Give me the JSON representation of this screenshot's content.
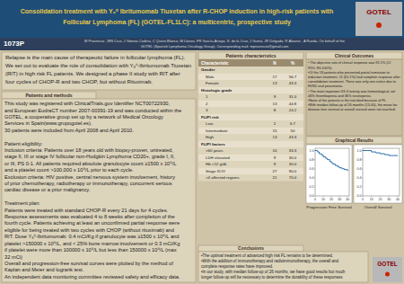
{
  "chart_data": [
    {
      "type": "step",
      "title": "Progression Free Survival",
      "x": [
        0,
        3,
        5,
        8,
        10,
        13,
        15,
        18,
        20,
        22,
        25,
        28,
        30,
        33,
        36,
        40
      ],
      "values": [
        1.0,
        0.97,
        0.93,
        0.9,
        0.86,
        0.83,
        0.8,
        0.76,
        0.73,
        0.7,
        0.67,
        0.64,
        0.62,
        0.6,
        0.58,
        0.55
      ],
      "color": "#2c6fad",
      "xlim": [
        0,
        42
      ],
      "ylim": [
        0,
        1.05
      ],
      "xticks": [
        0,
        10,
        20,
        30,
        40
      ],
      "yticks": [
        {
          "value": 0,
          "label": "0.0"
        },
        0.2,
        0.4,
        0.6,
        0.8,
        {
          "value": 1,
          "label": "1.0"
        }
      ],
      "grid": false
    },
    {
      "type": "step",
      "title": "Overall Survival",
      "x": [
        0,
        5,
        10,
        15,
        20,
        25,
        30,
        35,
        40
      ],
      "values": [
        1.0,
        1.0,
        0.97,
        0.95,
        0.93,
        0.91,
        0.89,
        0.89,
        0.89
      ],
      "color": "#2c6fad",
      "xlim": [
        0,
        42
      ],
      "ylim": [
        0,
        1.05
      ],
      "xticks": [
        0,
        10,
        20,
        30,
        40
      ],
      "yticks": [
        {
          "value": 0,
          "label": "0.0"
        },
        0.2,
        0.4,
        0.6,
        0.8,
        {
          "value": 1,
          "label": "1.0"
        }
      ],
      "grid": false
    }
  ],
  "page": {
    "title_line1": "Consolidation treatment with Y₉⁰ Ibritumomab Tiuxetan after R-CHOP induction in high-risk patients with",
    "title_line2": "Follicular Lymphoma (FL) (GOTEL-FL1LC): a multicentric, prospective study",
    "logo_text": "GOTEL",
    "poster_id": "1073P",
    "authors_line1": "M Provencio , MN Cruz, J Gómez-Codina, C Quero Blanco, M Llanos, FR García-Arroyo, S. de la Cruz, J Gumá, JR Delgado, R Álvarez , A Rueda. On behalf of the",
    "authors_line2": "GOTEL (Spanish Lymphoma Oncology Group). Corresponding mail: mprovencio@gmail.com",
    "intro_text": "Relapse is the main cause of therapeutic failure in follicular lymphoma (FL).\nWe set out to evaluate the role of consolidation with Y₉⁰-Ibritumomab Tiuxetan\n(RIT) in high risk FL patients. We designed a phase II study with RIT after\nfour cycles of CHOP-R and two CHOP, but without Rituximab.",
    "patients_methods_header": "Patients and methods",
    "patients_methods_text": "This study was registered with ClinicalTrials.gov Identifier NCT00722930,\nand European EudraCT number 2007-00391-19 and was conducted within the\nGOTEL, a cooperative group set up by a network of Medical Oncology\nServices in Spain(www.grupogotel.es).\n30 patients were included from April 2008 and April 2010.\n\nPatient eligibility:\nInclusion criteria: Patients over 18 years old with biopsy-proven, untreated,\nstage II, III or stage IV follicular non-Hodgkin Lymphoma CD20+, grade I, II,\nor III, PS 0-1. All patients required absolute granulocyte count ≥1500 x 10⁹/L\nand a platelet count >100,000 x 10⁹/L prior to each cycle.\nExclusion criteria: HIV positive, central nervous system involvement, history\nof prior chemotherapy, radiotherapy or immunotherapy, concurrent serious\ncardiac disease or a prior malignancy.\n\nTreatment plan:\nPatients were treated with standard CHOP-R every 21 days for 4 cycles.\nResponse assessments was evaluated 4 to 8 weeks after completion of the\nfourth cycle. Patients achieving at least an unconfirmed partial response were\neligible for being treated with two cycles with CHOP (without rituximab) and\nRIT. Dose Y₉⁰-Ibritumomab: 0.4 mCi/Kg if granulocyte was ≥1500 x 10⁹/L and\nplatelet >150000 x 10⁹/L, and < 25% bone marrow involvement or 0.3 mCi/Kg\nif platelet were more than 100000 x 10⁹/L but less than 150000 x 10⁹/L (max\n32 mCi)\nOverall and progression-free survival curves were plotted by the method of\nKaplan and Meier and logrank test.\nAn independent data monitoring committee reviewed safety and efficacy data.",
    "patients_char_header": "Patients characteristics",
    "table_columns": [
      "Characteristic",
      "N",
      "%"
    ],
    "table": [
      {
        "group": "Gender",
        "rows": [
          [
            "Male",
            "17",
            "56.7"
          ],
          [
            "Female",
            "13",
            "43.3"
          ]
        ]
      },
      {
        "group": "Histologic grade",
        "rows": [
          [
            "1",
            "9",
            "31.0"
          ],
          [
            "2",
            "13",
            "44.8"
          ],
          [
            "3",
            "8",
            "24.2"
          ]
        ]
      },
      {
        "group": "FLIPI risk",
        "rows": [
          [
            "Low",
            "2",
            "6.7"
          ],
          [
            "Intermediate",
            "15",
            "50"
          ],
          [
            "High",
            "13",
            "43.3"
          ]
        ]
      },
      {
        "group": "FLIPI factors",
        "rows": [
          [
            ">60 years",
            "10",
            "33.3"
          ],
          [
            "LDH elevated",
            "9",
            "30.0"
          ],
          [
            "Hb <12 g/dL",
            "9",
            "30.0"
          ],
          [
            "Stage III-IV",
            "27",
            "90.0"
          ],
          [
            ">4 affected regions",
            "21",
            "70.0"
          ]
        ]
      }
    ],
    "clinical_outcomes_header": "Clinical Outcomes",
    "clinical_outcomes_text": "• The objective rate of clinical response was 92.1% (CI\n95%: 83-100%).\n•Of the 18 patients who presented partial remission to\ninduction treatment, 11 (61.1%) had complete response after\nconsolidation treatment. There was only one exitus due to\nH1N1 viral pneumonia.\n• The most important G3-4 toxicity was hematological, wit\n46% thrombopenia and 36% neutropenia.\n•None of the patients in the trial died because of FL.\n•With median follow-up of 26 months (13-40), the mean for\ndisease-free survival or overall survival were not reached.",
    "graphical_results_header": "Graphical Results",
    "conclusions_header": "Conclusions",
    "conclusions_text": "•The optimal treatment of advanced high risk FL remains to be determined.\n•With the addition of immunotherapy and radioimmunotherapy, the overall and\ncomplete response rates have improved.\n•In our study, with median follow-up of 26 months, we have good results but much\nlonger follow-up will be necessary to determine the durability of these responses"
  }
}
